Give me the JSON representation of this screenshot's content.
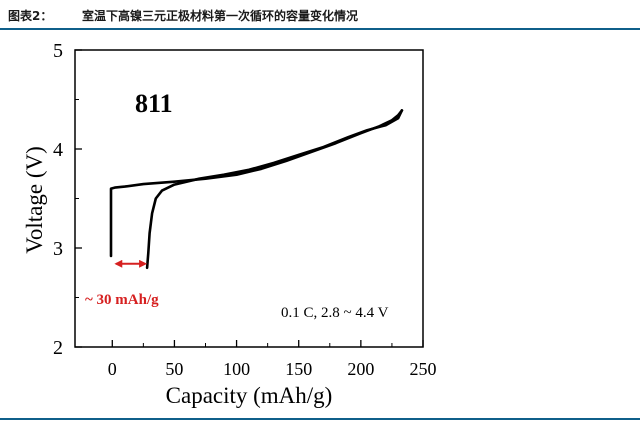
{
  "header": {
    "figure_label": "图表2：",
    "title": "室温下高镍三元正极材料第一次循环的容量变化情况"
  },
  "chart_data": {
    "type": "line",
    "title": "",
    "xlabel": "Capacity (mAh/g)",
    "ylabel": "Voltage (V)",
    "xlim": [
      -30,
      250
    ],
    "ylim": [
      2,
      5
    ],
    "x_ticks": [
      0,
      50,
      100,
      150,
      200,
      250
    ],
    "y_ticks": [
      2,
      3,
      4,
      5
    ],
    "grid": false,
    "legend": "none",
    "series": [
      {
        "name": "",
        "color": "#000000",
        "points": [
          [
            -1,
            2.92
          ],
          [
            -1,
            3.3
          ],
          [
            -1,
            3.58
          ],
          [
            -1,
            3.6
          ],
          [
            2,
            3.61
          ],
          [
            10,
            3.62
          ],
          [
            25,
            3.645
          ],
          [
            50,
            3.67
          ],
          [
            75,
            3.7
          ],
          [
            100,
            3.74
          ],
          [
            120,
            3.8
          ],
          [
            140,
            3.88
          ],
          [
            160,
            3.97
          ],
          [
            180,
            4.06
          ],
          [
            200,
            4.16
          ],
          [
            215,
            4.23
          ],
          [
            225,
            4.29
          ],
          [
            230,
            4.34
          ],
          [
            233,
            4.39
          ]
        ]
      },
      {
        "name": "",
        "color": "#000000",
        "points": [
          [
            233,
            4.39
          ],
          [
            230,
            4.31
          ],
          [
            220,
            4.24
          ],
          [
            205,
            4.19
          ],
          [
            190,
            4.12
          ],
          [
            170,
            4.02
          ],
          [
            150,
            3.94
          ],
          [
            130,
            3.86
          ],
          [
            110,
            3.79
          ],
          [
            90,
            3.74
          ],
          [
            70,
            3.7
          ],
          [
            50,
            3.64
          ],
          [
            40,
            3.58
          ],
          [
            35,
            3.5
          ],
          [
            32,
            3.35
          ],
          [
            30,
            3.15
          ],
          [
            29,
            2.95
          ],
          [
            28,
            2.8
          ]
        ]
      }
    ],
    "annotations": {
      "sample_label": "811",
      "condition_text": "0.1 C, 2.8 ~ 4.4 V",
      "irreversible_text": "~ 30 mAh/g",
      "irreversible_color": "#d62020",
      "arrow_from": [
        0,
        2.8
      ],
      "arrow_to": [
        28,
        2.8
      ]
    }
  }
}
